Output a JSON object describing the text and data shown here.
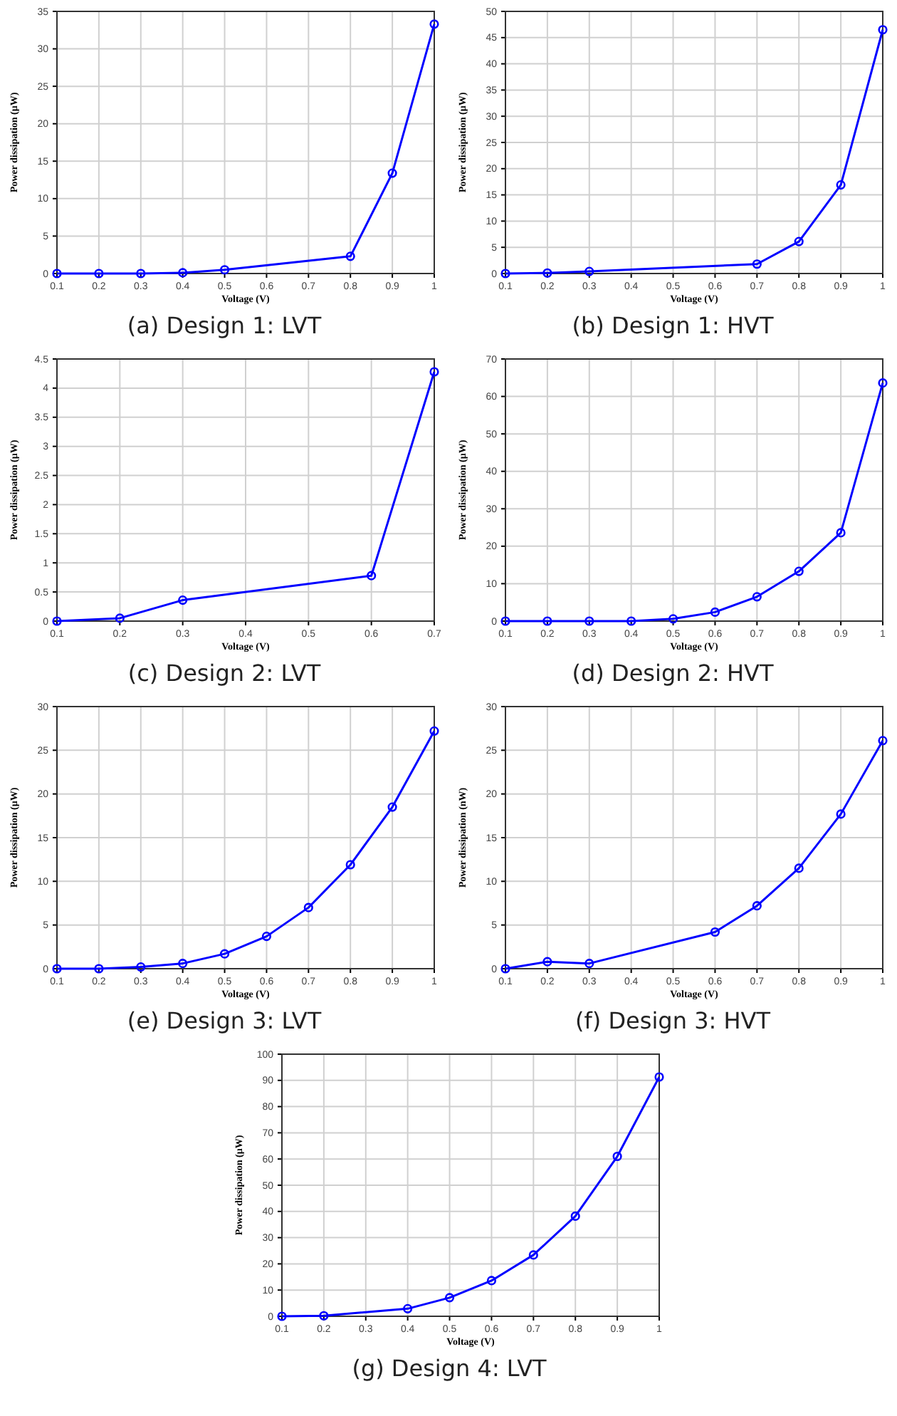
{
  "chart_data": [
    {
      "type": "line",
      "title": "(a) Design 1: LVT",
      "xlabel": "Voltage (V)",
      "ylabel": "Power dissipation (μW)",
      "x": [
        0.1,
        0.2,
        0.3,
        0.4,
        0.5,
        0.8,
        0.9,
        1
      ],
      "series": [
        {
          "color": "#0000ff",
          "values": [
            0,
            0,
            0,
            0.1,
            0.5,
            2.3,
            13.4,
            33.3
          ]
        }
      ],
      "xlim": [
        0.1,
        1
      ],
      "xticks": [
        0.1,
        0.2,
        0.3,
        0.4,
        0.5,
        0.6,
        0.7,
        0.8,
        0.9,
        1
      ],
      "ylim": [
        0,
        35
      ],
      "yticks": [
        0,
        5,
        10,
        15,
        20,
        25,
        30,
        35
      ],
      "grid": true,
      "marker": "circle",
      "line_style": "solid"
    },
    {
      "type": "line",
      "title": "(b) Design 1: HVT",
      "xlabel": "Voltage (V)",
      "ylabel": "Power dissipation (μW)",
      "x": [
        0.1,
        0.2,
        0.3,
        0.7,
        0.8,
        0.9,
        1
      ],
      "series": [
        {
          "color": "#0000ff",
          "values": [
            0,
            0.1,
            0.4,
            1.8,
            6.1,
            16.9,
            46.5
          ]
        }
      ],
      "xlim": [
        0.1,
        1
      ],
      "xticks": [
        0.1,
        0.2,
        0.3,
        0.4,
        0.5,
        0.6,
        0.7,
        0.8,
        0.9,
        1
      ],
      "ylim": [
        0,
        50
      ],
      "yticks": [
        0,
        5,
        10,
        15,
        20,
        25,
        30,
        35,
        40,
        45,
        50
      ],
      "grid": true,
      "marker": "circle",
      "line_style": "solid"
    },
    {
      "type": "line",
      "title": "(c) Design 2: LVT",
      "xlabel": "Voltage (V)",
      "ylabel": "Power dissipation (μW)",
      "x": [
        0.1,
        0.2,
        0.3,
        0.6,
        0.7
      ],
      "series": [
        {
          "color": "#0000ff",
          "values": [
            0,
            0.05,
            0.36,
            0.78,
            4.28
          ]
        }
      ],
      "xlim": [
        0.1,
        0.7
      ],
      "xticks": [
        0.1,
        0.2,
        0.3,
        0.4,
        0.5,
        0.6,
        0.7
      ],
      "ylim": [
        0,
        4.5
      ],
      "yticks": [
        0,
        0.5,
        1,
        1.5,
        2,
        2.5,
        3,
        3.5,
        4,
        4.5
      ],
      "grid": true,
      "marker": "circle",
      "line_style": "solid"
    },
    {
      "type": "line",
      "title": "(d) Design 2: HVT",
      "xlabel": "Voltage (V)",
      "ylabel": "Power dissipation (μW)",
      "x": [
        0.1,
        0.2,
        0.3,
        0.4,
        0.5,
        0.6,
        0.7,
        0.8,
        0.9,
        1
      ],
      "series": [
        {
          "color": "#0000ff",
          "values": [
            0,
            0,
            0,
            0,
            0.6,
            2.4,
            6.5,
            13.3,
            23.6,
            63.6
          ]
        }
      ],
      "xlim": [
        0.1,
        1
      ],
      "xticks": [
        0.1,
        0.2,
        0.3,
        0.4,
        0.5,
        0.6,
        0.7,
        0.8,
        0.9,
        1
      ],
      "ylim": [
        0,
        70
      ],
      "yticks": [
        0,
        10,
        20,
        30,
        40,
        50,
        60,
        70
      ],
      "grid": true,
      "marker": "circle",
      "line_style": "solid"
    },
    {
      "type": "line",
      "title": "(e) Design 3: LVT",
      "xlabel": "Voltage (V)",
      "ylabel": "Power dissipation (μW)",
      "x": [
        0.1,
        0.2,
        0.3,
        0.4,
        0.5,
        0.6,
        0.7,
        0.8,
        0.9,
        1
      ],
      "series": [
        {
          "color": "#0000ff",
          "values": [
            0,
            0,
            0.2,
            0.6,
            1.7,
            3.7,
            7.0,
            11.9,
            18.5,
            27.2
          ]
        }
      ],
      "xlim": [
        0.1,
        1
      ],
      "xticks": [
        0.1,
        0.2,
        0.3,
        0.4,
        0.5,
        0.6,
        0.7,
        0.8,
        0.9,
        1
      ],
      "ylim": [
        0,
        30
      ],
      "yticks": [
        0,
        5,
        10,
        15,
        20,
        25,
        30
      ],
      "grid": true,
      "marker": "circle",
      "line_style": "solid"
    },
    {
      "type": "line",
      "title": "(f) Design 3: HVT",
      "xlabel": "Voltage (V)",
      "ylabel": "Power dissipation (nW)",
      "x": [
        0.1,
        0.2,
        0.3,
        0.6,
        0.7,
        0.8,
        0.9,
        1
      ],
      "series": [
        {
          "color": "#0000ff",
          "values": [
            0,
            0.8,
            0.6,
            4.2,
            7.2,
            11.5,
            17.7,
            26.1
          ]
        }
      ],
      "xlim": [
        0.1,
        1
      ],
      "xticks": [
        0.1,
        0.2,
        0.3,
        0.4,
        0.5,
        0.6,
        0.7,
        0.8,
        0.9,
        1
      ],
      "ylim": [
        0,
        30
      ],
      "yticks": [
        0,
        5,
        10,
        15,
        20,
        25,
        30
      ],
      "grid": true,
      "marker": "circle",
      "line_style": "solid"
    },
    {
      "type": "line",
      "title": "(g) Design 4: LVT",
      "xlabel": "Voltage (V)",
      "ylabel": "Power dissipation (μW)",
      "x": [
        0.1,
        0.2,
        0.4,
        0.5,
        0.6,
        0.7,
        0.8,
        0.9,
        1
      ],
      "series": [
        {
          "color": "#0000ff",
          "values": [
            0,
            0.2,
            2.9,
            7.1,
            13.6,
            23.4,
            38.2,
            61,
            91.3
          ]
        }
      ],
      "xlim": [
        0.1,
        1
      ],
      "xticks": [
        0.1,
        0.2,
        0.3,
        0.4,
        0.5,
        0.6,
        0.7,
        0.8,
        0.9,
        1
      ],
      "ylim": [
        0,
        100
      ],
      "yticks": [
        0,
        10,
        20,
        30,
        40,
        50,
        60,
        70,
        80,
        90,
        100
      ],
      "grid": true,
      "marker": "circle",
      "line_style": "solid"
    }
  ]
}
